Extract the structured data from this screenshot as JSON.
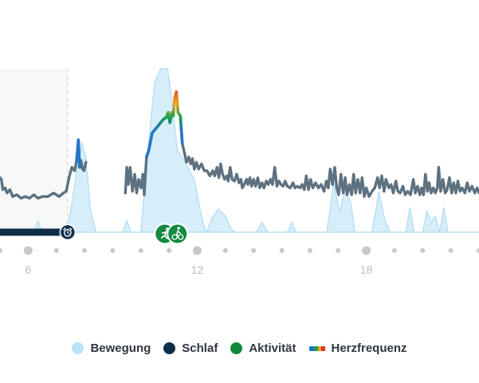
{
  "chart_data": {
    "type": "area",
    "x_ticks": [
      {
        "label": "6",
        "x": 6
      },
      {
        "label": "12",
        "x": 12
      },
      {
        "label": "18",
        "x": 18
      }
    ],
    "xlim": [
      5,
      22
    ],
    "ylim": [
      0,
      100
    ],
    "sleep_period": {
      "name": "Schlaf",
      "start": 5,
      "end": 7.4
    },
    "activities": [
      {
        "name": "running-activity",
        "x": 10.85
      },
      {
        "name": "cycling-activity",
        "x": 11.3
      }
    ],
    "movement": [
      [
        5.0,
        0
      ],
      [
        6.2,
        0
      ],
      [
        6.35,
        7
      ],
      [
        6.5,
        0
      ],
      [
        7.3,
        0
      ],
      [
        7.5,
        12
      ],
      [
        7.7,
        35
      ],
      [
        7.9,
        55
      ],
      [
        8.05,
        45
      ],
      [
        8.2,
        15
      ],
      [
        8.4,
        0
      ],
      [
        9.35,
        0
      ],
      [
        9.5,
        7
      ],
      [
        9.65,
        0
      ],
      [
        10.0,
        0
      ],
      [
        10.1,
        20
      ],
      [
        10.3,
        60
      ],
      [
        10.5,
        92
      ],
      [
        10.7,
        100
      ],
      [
        10.95,
        100
      ],
      [
        11.1,
        80
      ],
      [
        11.3,
        50
      ],
      [
        11.6,
        42
      ],
      [
        11.9,
        32
      ],
      [
        12.1,
        14
      ],
      [
        12.25,
        3
      ],
      [
        12.35,
        0
      ],
      [
        12.5,
        8
      ],
      [
        12.75,
        14
      ],
      [
        13.0,
        10
      ],
      [
        13.2,
        2
      ],
      [
        13.35,
        0
      ],
      [
        14.1,
        0
      ],
      [
        14.3,
        6
      ],
      [
        14.5,
        0
      ],
      [
        15.2,
        0
      ],
      [
        15.35,
        6
      ],
      [
        15.5,
        0
      ],
      [
        16.6,
        0
      ],
      [
        16.85,
        30
      ],
      [
        17.05,
        12
      ],
      [
        17.25,
        26
      ],
      [
        17.45,
        18
      ],
      [
        17.6,
        0
      ],
      [
        18.2,
        0
      ],
      [
        18.45,
        25
      ],
      [
        18.65,
        8
      ],
      [
        18.85,
        0
      ],
      [
        19.4,
        0
      ],
      [
        19.55,
        15
      ],
      [
        19.7,
        0
      ],
      [
        20.0,
        0
      ],
      [
        20.15,
        13
      ],
      [
        20.3,
        6
      ],
      [
        20.45,
        10
      ],
      [
        20.6,
        0
      ],
      [
        20.75,
        15
      ],
      [
        20.9,
        0
      ],
      [
        22.0,
        0
      ]
    ],
    "heart_rate": [
      [
        5.0,
        36
      ],
      [
        5.05,
        35
      ],
      [
        5.1,
        29
      ],
      [
        5.18,
        30
      ],
      [
        5.25,
        27
      ],
      [
        5.35,
        29
      ],
      [
        5.45,
        25
      ],
      [
        5.6,
        26
      ],
      [
        5.75,
        24
      ],
      [
        5.9,
        25
      ],
      [
        6.05,
        24
      ],
      [
        6.2,
        26
      ],
      [
        6.35,
        24
      ],
      [
        6.5,
        25
      ],
      [
        6.7,
        25
      ],
      [
        6.9,
        27
      ],
      [
        7.1,
        25
      ],
      [
        7.25,
        27
      ],
      [
        7.35,
        28
      ],
      [
        7.45,
        36
      ],
      [
        7.55,
        42
      ],
      [
        7.65,
        40
      ],
      [
        7.72,
        46
      ],
      [
        7.78,
        58
      ],
      [
        7.83,
        42
      ],
      [
        7.87,
        46
      ],
      [
        7.93,
        41
      ],
      [
        7.98,
        40
      ],
      [
        8.05,
        45
      ],
      null,
      [
        9.45,
        27
      ],
      [
        9.5,
        42
      ],
      [
        9.55,
        32
      ],
      [
        9.62,
        42
      ],
      [
        9.7,
        28
      ],
      [
        9.78,
        38
      ],
      [
        9.85,
        27
      ],
      [
        9.92,
        35
      ],
      [
        10.0,
        30
      ],
      [
        10.07,
        38
      ],
      [
        10.12,
        26
      ],
      [
        10.2,
        48
      ],
      [
        10.28,
        52
      ],
      [
        10.4,
        62
      ],
      [
        10.6,
        66
      ],
      [
        10.8,
        70
      ],
      [
        10.9,
        71
      ],
      [
        10.97,
        74
      ],
      [
        11.03,
        68
      ],
      [
        11.1,
        74
      ],
      [
        11.15,
        72
      ],
      [
        11.2,
        82
      ],
      [
        11.26,
        86
      ],
      [
        11.32,
        74
      ],
      [
        11.4,
        72
      ],
      [
        11.47,
        56
      ],
      [
        11.55,
        50
      ],
      [
        11.62,
        45
      ],
      [
        11.7,
        48
      ],
      [
        11.77,
        44
      ],
      [
        11.83,
        47
      ],
      [
        11.9,
        41
      ],
      [
        11.97,
        45
      ],
      [
        12.05,
        41
      ],
      [
        12.15,
        44
      ],
      [
        12.25,
        40
      ],
      [
        12.35,
        40
      ],
      [
        12.45,
        37
      ],
      [
        12.55,
        40
      ],
      [
        12.62,
        37
      ],
      [
        12.7,
        42
      ],
      [
        12.77,
        36
      ],
      [
        12.83,
        44
      ],
      [
        12.9,
        38
      ],
      [
        12.97,
        35
      ],
      [
        13.05,
        37
      ],
      [
        13.1,
        34
      ],
      [
        13.17,
        42
      ],
      [
        13.24,
        35
      ],
      [
        13.32,
        34
      ],
      [
        13.4,
        38
      ],
      [
        13.48,
        33
      ],
      [
        13.55,
        35
      ],
      [
        13.6,
        30
      ],
      [
        13.67,
        32
      ],
      [
        13.75,
        35
      ],
      [
        13.8,
        32
      ],
      [
        13.87,
        36
      ],
      [
        13.93,
        31
      ],
      [
        14.0,
        35
      ],
      [
        14.07,
        31
      ],
      [
        14.15,
        36
      ],
      [
        14.22,
        30
      ],
      [
        14.3,
        33
      ],
      [
        14.37,
        30
      ],
      [
        14.45,
        34
      ],
      [
        14.52,
        32
      ],
      [
        14.6,
        35
      ],
      [
        14.67,
        32
      ],
      [
        14.75,
        42
      ],
      [
        14.83,
        31
      ],
      [
        14.9,
        34
      ],
      [
        14.97,
        32
      ],
      [
        15.05,
        31
      ],
      [
        15.12,
        34
      ],
      [
        15.2,
        31
      ],
      [
        15.3,
        30
      ],
      [
        15.4,
        33
      ],
      [
        15.47,
        30
      ],
      [
        15.55,
        31
      ],
      [
        15.65,
        30
      ],
      [
        15.72,
        32
      ],
      [
        15.8,
        29
      ],
      [
        15.87,
        37
      ],
      [
        15.95,
        29
      ],
      [
        16.02,
        35
      ],
      [
        16.1,
        30
      ],
      [
        16.2,
        33
      ],
      [
        16.3,
        30
      ],
      [
        16.4,
        32
      ],
      [
        16.5,
        28
      ],
      [
        16.58,
        34
      ],
      [
        16.65,
        30
      ],
      [
        16.72,
        41
      ],
      [
        16.8,
        32
      ],
      [
        16.88,
        42
      ],
      [
        16.95,
        30
      ],
      [
        17.02,
        26
      ],
      [
        17.1,
        38
      ],
      [
        17.18,
        27
      ],
      [
        17.25,
        36
      ],
      [
        17.32,
        26
      ],
      [
        17.4,
        32
      ],
      [
        17.48,
        26
      ],
      [
        17.55,
        38
      ],
      [
        17.62,
        27
      ],
      [
        17.7,
        35
      ],
      [
        17.78,
        27
      ],
      [
        17.85,
        36
      ],
      [
        17.93,
        25
      ],
      [
        18.0,
        30
      ],
      [
        18.1,
        25
      ],
      [
        18.2,
        28
      ],
      [
        18.3,
        30
      ],
      [
        18.4,
        36
      ],
      [
        18.47,
        30
      ],
      [
        18.55,
        37
      ],
      [
        18.63,
        28
      ],
      [
        18.7,
        35
      ],
      [
        18.8,
        30
      ],
      [
        18.88,
        32
      ],
      [
        18.96,
        27
      ],
      [
        19.05,
        34
      ],
      [
        19.12,
        28
      ],
      [
        19.2,
        27
      ],
      [
        19.3,
        31
      ],
      [
        19.38,
        26
      ],
      [
        19.47,
        28
      ],
      [
        19.57,
        26
      ],
      [
        19.67,
        35
      ],
      [
        19.74,
        27
      ],
      [
        19.82,
        31
      ],
      [
        19.9,
        26
      ],
      [
        19.96,
        30
      ],
      [
        20.03,
        26
      ],
      [
        20.1,
        38
      ],
      [
        20.17,
        28
      ],
      [
        20.23,
        33
      ],
      [
        20.3,
        27
      ],
      [
        20.38,
        30
      ],
      [
        20.45,
        27
      ],
      [
        20.52,
        30
      ],
      [
        20.57,
        42
      ],
      [
        20.64,
        28
      ],
      [
        20.72,
        35
      ],
      [
        20.8,
        27
      ],
      [
        20.87,
        29
      ],
      [
        20.95,
        36
      ],
      [
        21.03,
        27
      ],
      [
        21.1,
        33
      ],
      [
        21.18,
        27
      ],
      [
        21.25,
        34
      ],
      [
        21.33,
        28
      ],
      [
        21.4,
        30
      ],
      [
        21.5,
        27
      ],
      [
        21.58,
        33
      ],
      [
        21.66,
        28
      ],
      [
        21.75,
        31
      ],
      [
        21.85,
        27
      ],
      [
        21.93,
        30
      ],
      [
        22.0,
        27
      ]
    ],
    "active_heart_rate": [
      [
        7.72,
        46
      ],
      [
        7.78,
        58
      ],
      [
        7.83,
        42
      ],
      null,
      [
        10.2,
        48
      ],
      [
        10.28,
        52
      ],
      [
        10.4,
        62
      ],
      [
        10.6,
        66
      ],
      [
        10.8,
        70
      ],
      [
        10.9,
        71
      ],
      [
        10.97,
        74
      ],
      [
        11.03,
        68
      ],
      [
        11.1,
        74
      ],
      [
        11.15,
        72
      ],
      [
        11.2,
        82
      ],
      [
        11.26,
        86
      ],
      [
        11.32,
        74
      ],
      [
        11.4,
        72
      ],
      [
        11.47,
        56
      ]
    ],
    "colors": {
      "movement_fill": "#d6eefa",
      "movement_stroke": "#b5dff3",
      "heart_rate": "#5d7180",
      "active_heart_rate": "#2376c8",
      "sleep": "#0e2d48",
      "activity": "#128a3f",
      "hr_high": "#e0312b",
      "hr_mid": "#f2a21b",
      "hr_green": "#15a24a",
      "tick_dot": "#c8c8c8",
      "sleep_shade": "#f8f8f8"
    }
  },
  "legend": [
    {
      "label": "Bewegung",
      "color": "#b9e4f7"
    },
    {
      "label": "Schlaf",
      "color": "#0e2d48"
    },
    {
      "label": "Aktivität",
      "color": "#128a3f"
    },
    {
      "label": "Herzfrequenz",
      "color": "gradient"
    }
  ]
}
